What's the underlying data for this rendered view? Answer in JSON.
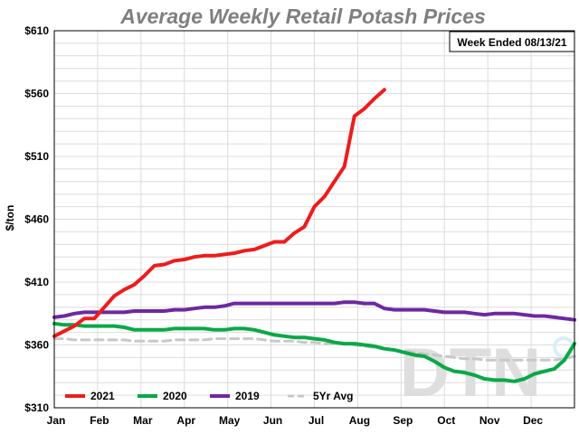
{
  "chart_data": {
    "type": "line",
    "title": "Average Weekly Retail Potash Prices",
    "annotation": "Week Ended 08/13/21",
    "xlabel": "",
    "ylabel": "$/ton",
    "ylim": [
      310,
      610
    ],
    "yticks": [
      310,
      360,
      410,
      460,
      510,
      560,
      610
    ],
    "ytick_labels": [
      "$310",
      "$360",
      "$410",
      "$460",
      "$510",
      "$560",
      "$610"
    ],
    "xticks": [
      "Jan",
      "Feb",
      "Mar",
      "Apr",
      "May",
      "Jun",
      "Jul",
      "Aug",
      "Sep",
      "Oct",
      "Nov",
      "Dec"
    ],
    "grid": true,
    "legend": "bottom",
    "watermark": "DTN",
    "series": [
      {
        "name": "2021",
        "color": "#ee1c1c",
        "dashed": false,
        "values": [
          367,
          371,
          375,
          381,
          381,
          390,
          399,
          404,
          408,
          415,
          423,
          424,
          427,
          428,
          430,
          431,
          431,
          432,
          433,
          435,
          436,
          439,
          442,
          442,
          449,
          454,
          470,
          478,
          490,
          502,
          542,
          548,
          556,
          563
        ]
      },
      {
        "name": "2020",
        "color": "#0aa846",
        "dashed": false,
        "values": [
          377,
          376,
          376,
          375,
          375,
          375,
          375,
          374,
          372,
          372,
          372,
          372,
          373,
          373,
          373,
          373,
          372,
          372,
          373,
          373,
          372,
          370,
          368,
          367,
          366,
          366,
          365,
          364,
          362,
          361,
          361,
          360,
          359,
          357,
          356,
          354,
          352,
          351,
          347,
          342,
          339,
          338,
          336,
          333,
          332,
          332,
          331,
          333,
          337,
          339,
          341,
          348,
          361
        ]
      },
      {
        "name": "2019",
        "color": "#6e28a0",
        "dashed": false,
        "values": [
          382,
          383,
          385,
          386,
          386,
          386,
          386,
          386,
          387,
          387,
          387,
          387,
          388,
          388,
          389,
          390,
          390,
          391,
          393,
          393,
          393,
          393,
          393,
          393,
          393,
          393,
          393,
          393,
          393,
          394,
          394,
          393,
          393,
          389,
          388,
          388,
          388,
          388,
          387,
          386,
          386,
          386,
          385,
          384,
          385,
          385,
          385,
          384,
          383,
          383,
          382,
          381,
          380
        ]
      },
      {
        "name": "5Yr Avg",
        "color": "#c8c8c8",
        "dashed": true,
        "values": [
          365,
          365,
          364,
          364,
          364,
          364,
          364,
          364,
          363,
          363,
          363,
          363,
          364,
          364,
          364,
          364,
          365,
          365,
          365,
          365,
          365,
          364,
          363,
          363,
          363,
          362,
          362,
          361,
          361,
          361,
          360,
          359,
          358,
          357,
          356,
          355,
          354,
          353,
          352,
          351,
          350,
          349,
          349,
          348,
          348,
          348,
          348,
          348,
          348,
          348,
          348,
          349,
          351
        ]
      }
    ]
  }
}
